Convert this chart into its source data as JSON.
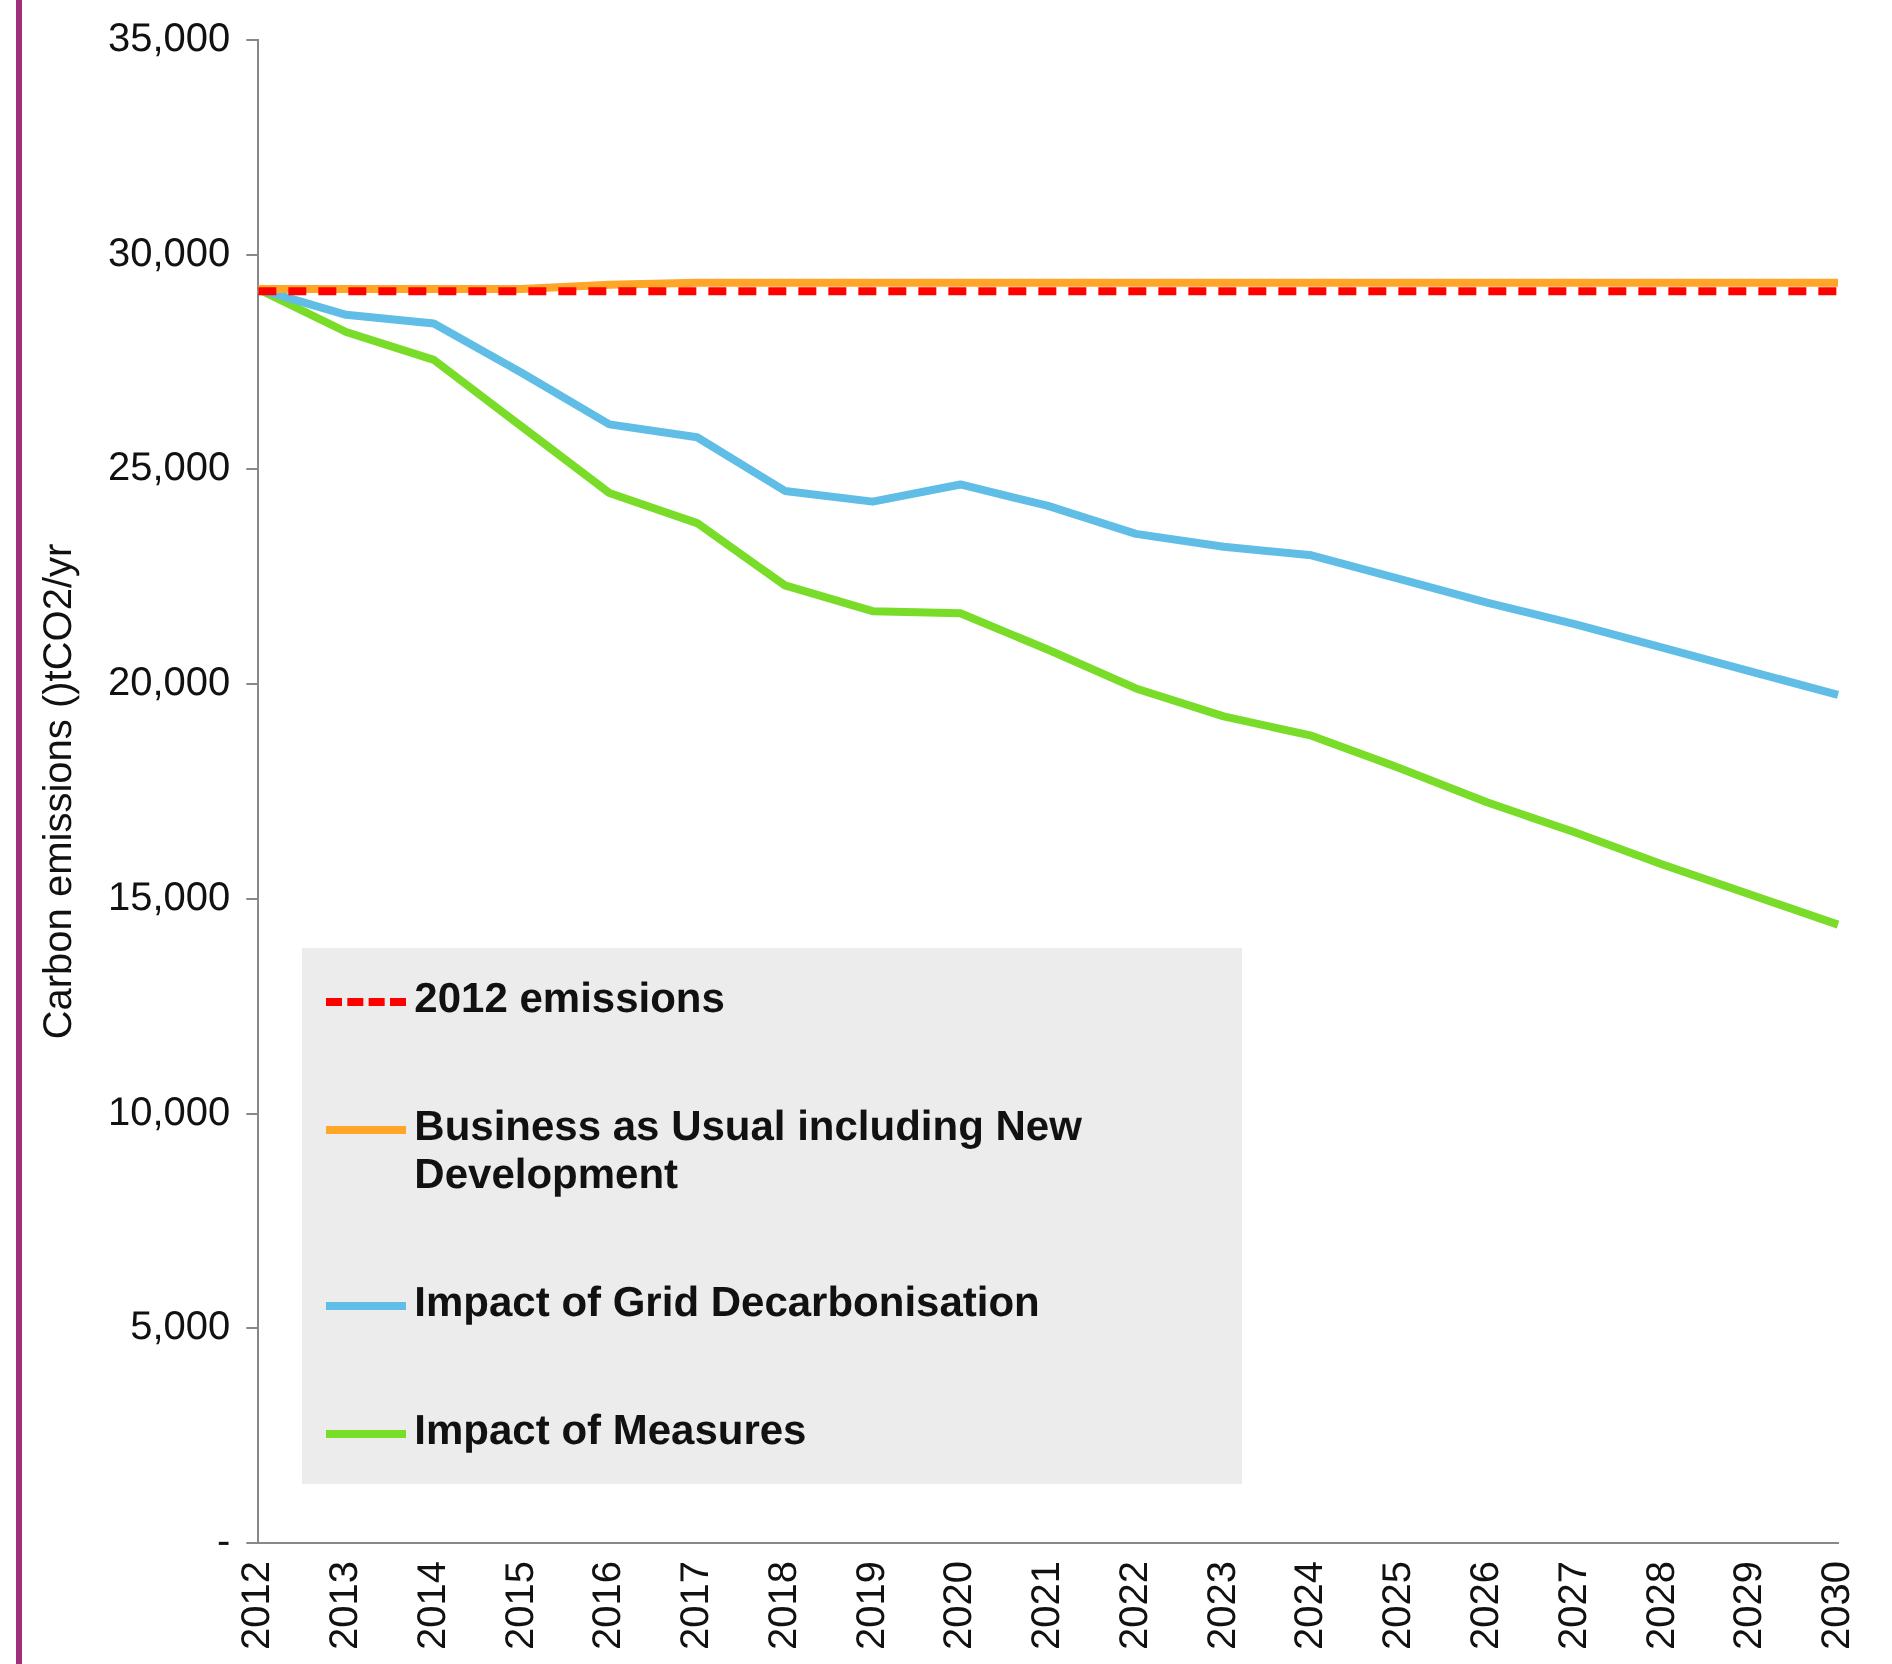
{
  "chart_data": {
    "type": "line",
    "ylabel": "Carbon emissions ()tCO2/yr",
    "categories": [
      "2012",
      "2013",
      "2014",
      "2015",
      "2016",
      "2017",
      "2018",
      "2019",
      "2020",
      "2021",
      "2022",
      "2023",
      "2024",
      "2025",
      "2026",
      "2027",
      "2028",
      "2029",
      "2030"
    ],
    "series": [
      {
        "name": "2012 emissions",
        "color": "#ff0000",
        "line_style": "dashed",
        "values": [
          29150,
          29150,
          29150,
          29150,
          29150,
          29150,
          29150,
          29150,
          29150,
          29150,
          29150,
          29150,
          29150,
          29150,
          29150,
          29150,
          29150,
          29150,
          29150
        ]
      },
      {
        "name": "Business as Usual including New Development",
        "color": "#ffa528",
        "values": [
          29200,
          29200,
          29200,
          29200,
          29300,
          29350,
          29350,
          29350,
          29350,
          29350,
          29350,
          29350,
          29350,
          29350,
          29350,
          29350,
          29350,
          29350,
          29350
        ]
      },
      {
        "name": "Impact of Grid Decarbonisation",
        "color": "#5fbde6",
        "values": [
          29200,
          28600,
          28400,
          27250,
          26050,
          25750,
          24500,
          24250,
          24650,
          24150,
          23500,
          23200,
          23000,
          22450,
          21900,
          21400,
          20850,
          20300,
          19750
        ]
      },
      {
        "name": "Impact of Measures",
        "color": "#78dc28",
        "values": [
          29200,
          28200,
          27550,
          26000,
          24450,
          23750,
          22300,
          21700,
          21650,
          20800,
          19900,
          19250,
          18800,
          18050,
          17250,
          16550,
          15800,
          15100,
          14400
        ]
      }
    ],
    "ylim": [
      0,
      35000
    ],
    "yticks": [
      {
        "value": 0,
        "label": "-"
      },
      {
        "value": 5000,
        "label": "5,000"
      },
      {
        "value": 10000,
        "label": "10,000"
      },
      {
        "value": 15000,
        "label": "15,000"
      },
      {
        "value": 20000,
        "label": "20,000"
      },
      {
        "value": 25000,
        "label": "25,000"
      },
      {
        "value": 30000,
        "label": "30,000"
      },
      {
        "value": 35000,
        "label": "35,000"
      }
    ],
    "grid": false,
    "legend": "bottom left",
    "marker": "none",
    "line_style": "solid"
  }
}
